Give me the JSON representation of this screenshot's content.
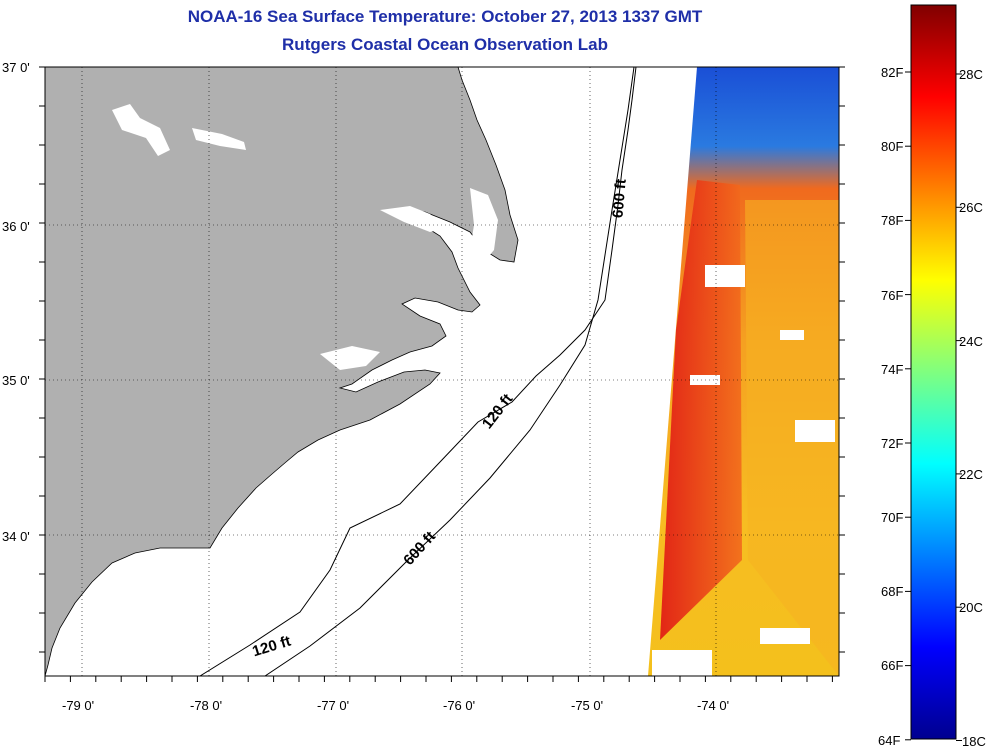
{
  "title": {
    "line1": "NOAA-16 Sea Surface Temperature:  October 27, 2013 1337 GMT",
    "line2": "Rutgers Coastal Ocean Observation Lab"
  },
  "map": {
    "lat_labels": [
      "37 0'",
      "36 0'",
      "35 0'",
      "34 0'"
    ],
    "lon_labels": [
      "-79 0'",
      "-78 0'",
      "-77 0'",
      "-76 0'",
      "-75 0'",
      "-74 0'"
    ],
    "contour_labels": [
      "600 ft",
      "120 ft",
      "600 ft",
      "120 ft"
    ],
    "colors": {
      "land": "#b0b0b0",
      "frame": "#000000"
    }
  },
  "colorbar": {
    "fahrenheit_labels": [
      "82F",
      "80F",
      "78F",
      "76F",
      "74F",
      "72F",
      "70F",
      "68F",
      "66F",
      "64F"
    ],
    "celsius_labels": [
      "28C",
      "26C",
      "24C",
      "22C",
      "20C",
      "18C"
    ]
  }
}
